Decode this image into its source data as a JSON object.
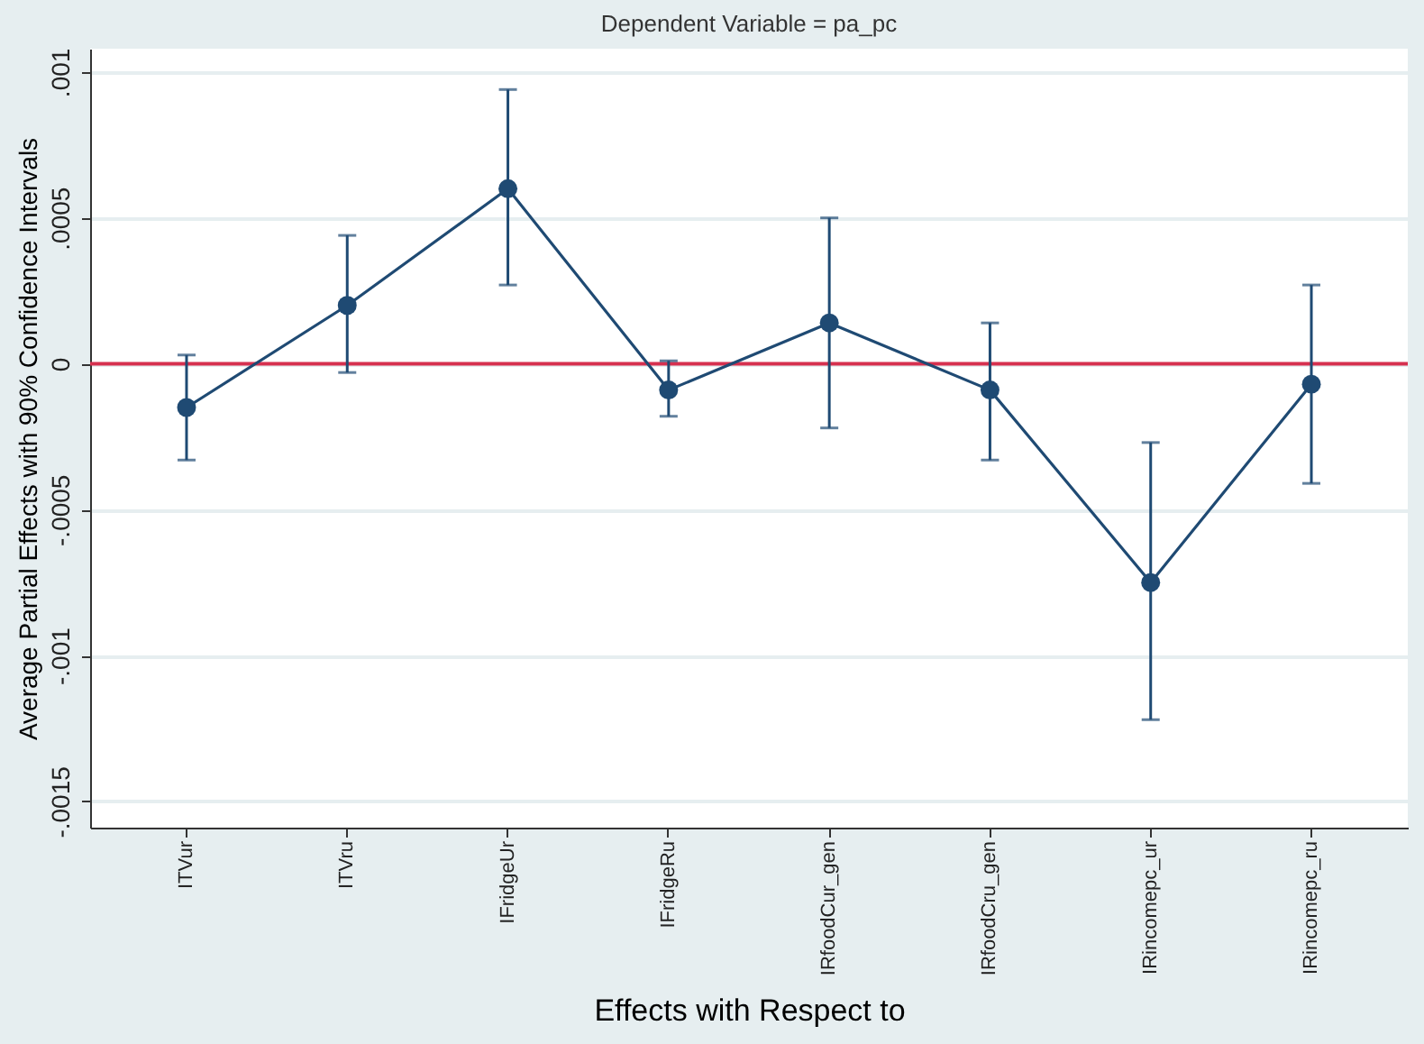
{
  "chart_data": {
    "type": "line",
    "title": "Dependent Variable = pa_pc",
    "xlabel": "Effects with Respect to",
    "ylabel": "Average Partial Effects with 90% Confidence Intervals",
    "categories": [
      "ITVur",
      "ITVru",
      "IFridgeUr",
      "IFridgeRu",
      "IRfoodCur_gen",
      "IRfoodCru_gen",
      "IRincomepc_ur",
      "IRincomepc_ru"
    ],
    "series": [
      {
        "color": "#1f4a73",
        "values": [
          -0.00015,
          0.0002,
          0.0006,
          -9e-05,
          0.00014,
          -9e-05,
          -0.00075,
          -7e-05
        ],
        "errors": [
          [
            -0.00033,
            3e-05
          ],
          [
            -3e-05,
            0.00044
          ],
          [
            0.00027,
            0.00094
          ],
          [
            -0.00018,
            1e-05
          ],
          [
            -0.00022,
            0.0005
          ],
          [
            -0.00033,
            0.00014
          ],
          [
            -0.00122,
            -0.00027
          ],
          [
            -0.00041,
            0.00027
          ]
        ]
      }
    ],
    "ylim": [
      -0.00159,
      0.00108
    ],
    "yticks": [
      {
        "value": -0.0015,
        "label": "-.0015"
      },
      {
        "value": -0.001,
        "label": "-.001"
      },
      {
        "value": -0.0005,
        "label": "-.0005"
      },
      0,
      {
        "value": 0.0005,
        "label": ".0005"
      },
      {
        "value": 0.001,
        "label": ".001"
      }
    ],
    "ref_lines": [
      {
        "axis": "y",
        "value": 0,
        "color": "#d6304f"
      }
    ],
    "grid": "y",
    "marker": "circle",
    "line_style": "solid"
  }
}
